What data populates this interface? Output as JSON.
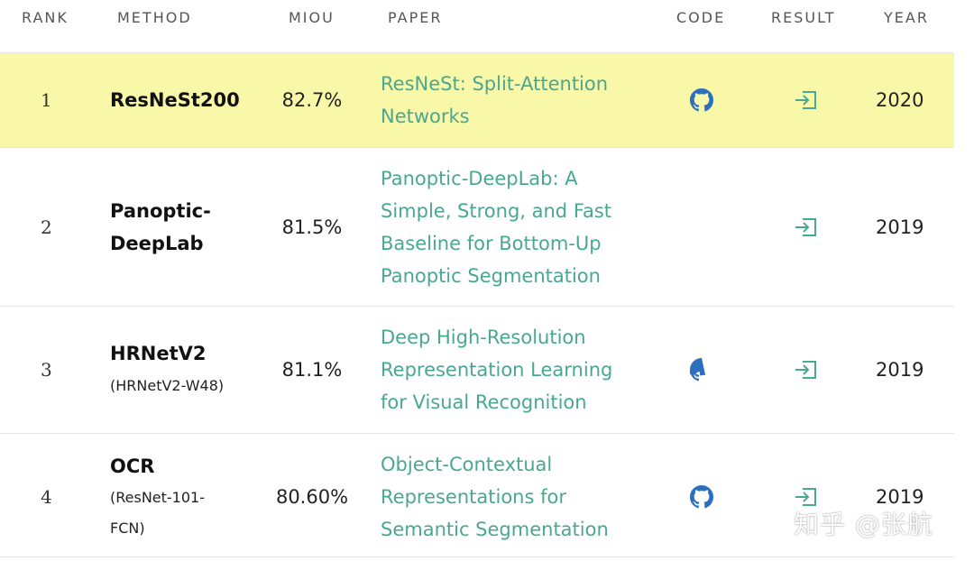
{
  "header": {
    "rank": "RANK",
    "method": "METHOD",
    "miou": "MIOU",
    "paper": "PAPER",
    "code": "CODE",
    "result": "RESULT",
    "year": "YEAR"
  },
  "rows": [
    {
      "rank": "1",
      "method": "ResNeSt200",
      "method_sub": "",
      "miou": "82.7%",
      "paper": "ResNeSt: Split-Attention Networks",
      "has_code": true,
      "year": "2020",
      "highlighted": true
    },
    {
      "rank": "2",
      "method": "Panoptic-DeepLab",
      "method_sub": "",
      "miou": "81.5%",
      "paper": "Panoptic-DeepLab: A Simple, Strong, and Fast Baseline for Bottom-Up Panoptic Segmentation",
      "has_code": false,
      "year": "2019",
      "highlighted": false
    },
    {
      "rank": "3",
      "method": "HRNetV2",
      "method_sub": "(HRNetV2-W48)",
      "miou": "81.1%",
      "paper": "Deep High-Resolution Representation Learning for Visual Recognition",
      "has_code": true,
      "year": "2019",
      "highlighted": false
    },
    {
      "rank": "4",
      "method": "OCR",
      "method_sub": "(ResNet-101-FCN)",
      "miou": "80.60%",
      "paper": "Object-Contextual Representations for Semantic Segmentation",
      "has_code": true,
      "year": "2019",
      "highlighted": false
    }
  ],
  "icons": {
    "code": "github-icon",
    "result": "result-enter-icon"
  },
  "colors": {
    "highlight": "#f9f8a8",
    "link": "#4aa792",
    "github": "#2c6fbf"
  },
  "watermark": "知乎 @张航"
}
